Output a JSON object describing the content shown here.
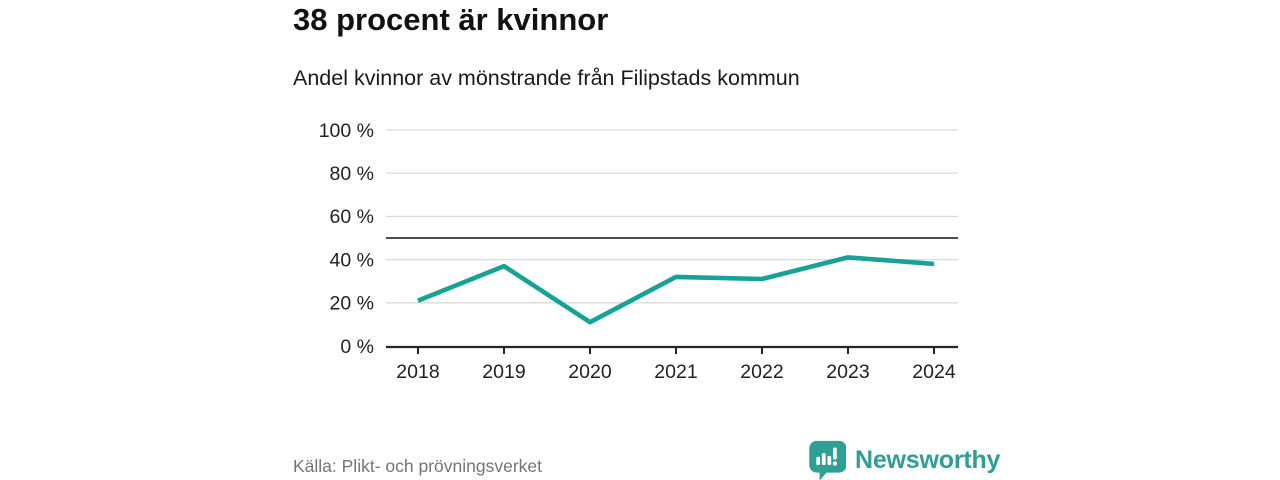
{
  "header": {
    "title": "38 procent är kvinnor",
    "subtitle": "Andel kvinnor av mönstrande från Filipstads kommun"
  },
  "chart_data": {
    "type": "line",
    "title": "38 procent är kvinnor",
    "subtitle": "Andel kvinnor av mönstrande från Filipstads kommun",
    "x": [
      2018,
      2019,
      2020,
      2021,
      2022,
      2023,
      2024
    ],
    "series": [
      {
        "name": "Andel kvinnor av mönstrande",
        "values": [
          21,
          37,
          11,
          32,
          31,
          41,
          38
        ]
      }
    ],
    "xlabel": "",
    "ylabel": "",
    "ylim": [
      0,
      100
    ],
    "yticks": [
      0,
      20,
      40,
      60,
      80,
      100
    ],
    "ytick_suffix": " %",
    "reference_line": 50,
    "grid": true,
    "legend_position": "none"
  },
  "footer": {
    "source": "Källa: Plikt- och prövningsverket",
    "brand": "Newsworthy"
  },
  "colors": {
    "line": "#16a296",
    "grid": "#d9d9d9",
    "reference": "#4d4d4d",
    "axis": "#262626",
    "tick_text": "#222222",
    "muted": "#757575",
    "brand_teal": "#2f9e95"
  }
}
